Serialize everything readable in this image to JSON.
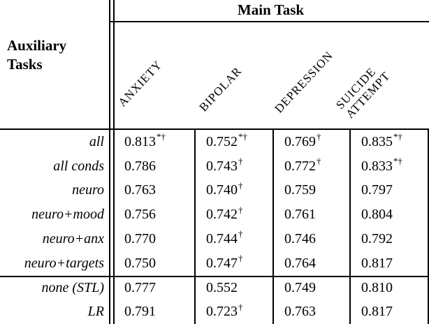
{
  "corner": {
    "line1": "Auxiliary",
    "line2": "Tasks"
  },
  "main_task_label": "Main Task",
  "columns": [
    {
      "label": "ANXIETY"
    },
    {
      "label": "BIPOLAR"
    },
    {
      "label": "DEPRESSION"
    },
    {
      "label": "SUICIDE",
      "label2": "ATTEMPT"
    }
  ],
  "rows": [
    {
      "label": "all",
      "cells": [
        {
          "v": "0.813",
          "sup": "*†"
        },
        {
          "v": "0.752",
          "sup": "*†"
        },
        {
          "v": "0.769",
          "sup": "†"
        },
        {
          "v": "0.835",
          "sup": "*†"
        }
      ]
    },
    {
      "label": "all conds",
      "cells": [
        {
          "v": "0.786"
        },
        {
          "v": "0.743",
          "sup": "†"
        },
        {
          "v": "0.772",
          "sup": "†"
        },
        {
          "v": "0.833",
          "sup": "*†"
        }
      ]
    },
    {
      "label": "neuro",
      "cells": [
        {
          "v": "0.763"
        },
        {
          "v": "0.740",
          "sup": "†"
        },
        {
          "v": "0.759"
        },
        {
          "v": "0.797"
        }
      ]
    },
    {
      "label": "neuro+mood",
      "cells": [
        {
          "v": "0.756"
        },
        {
          "v": "0.742",
          "sup": "†"
        },
        {
          "v": "0.761"
        },
        {
          "v": "0.804"
        }
      ]
    },
    {
      "label": "neuro+anx",
      "cells": [
        {
          "v": "0.770"
        },
        {
          "v": "0.744",
          "sup": "†"
        },
        {
          "v": "0.746"
        },
        {
          "v": "0.792"
        }
      ]
    },
    {
      "label": "neuro+targets",
      "cells": [
        {
          "v": "0.750"
        },
        {
          "v": "0.747",
          "sup": "†"
        },
        {
          "v": "0.764"
        },
        {
          "v": "0.817"
        }
      ]
    },
    {
      "label": "none (STL)",
      "cells": [
        {
          "v": "0.777"
        },
        {
          "v": "0.552"
        },
        {
          "v": "0.749"
        },
        {
          "v": "0.810"
        }
      ]
    },
    {
      "label": "LR",
      "cells": [
        {
          "v": "0.791"
        },
        {
          "v": "0.723",
          "sup": "†"
        },
        {
          "v": "0.763"
        },
        {
          "v": "0.817"
        }
      ]
    }
  ]
}
